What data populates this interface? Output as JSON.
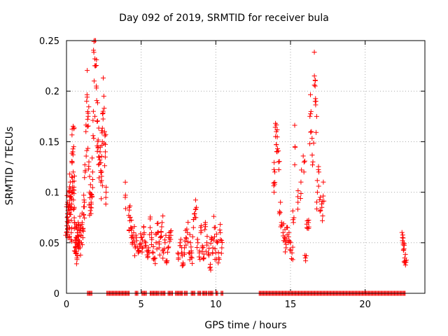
{
  "chart_data": {
    "type": "scatter",
    "title": "Day 092 of 2019, SRMTID for receiver bula",
    "xlabel": "GPS time / hours",
    "ylabel": "SRMTID / TECUs",
    "xlim": [
      0,
      24
    ],
    "ylim": [
      0,
      0.25
    ],
    "xticks": [
      0,
      5,
      10,
      15,
      20
    ],
    "xtick_labels": [
      "0",
      "5",
      "10",
      "15",
      "20"
    ],
    "yticks": [
      0,
      0.05,
      0.1,
      0.15,
      0.2,
      0.25
    ],
    "ytick_labels": [
      "0",
      "0.05",
      "0.1",
      "0.15",
      "0.2",
      "0.25"
    ],
    "grid": true,
    "marker": "+",
    "color": "#ff0000",
    "series": [
      {
        "name": "SRMTID",
        "x": [
          0.0,
          0.05,
          0.08,
          0.1,
          0.12,
          0.15,
          0.18,
          0.2,
          0.22,
          0.25,
          0.28,
          0.3,
          0.32,
          0.35,
          0.38,
          0.4,
          0.42,
          0.45,
          0.48,
          0.5,
          0.52,
          0.55,
          0.58,
          0.6,
          0.62,
          0.65,
          0.68,
          0.7,
          0.72,
          0.75,
          0.78,
          0.8,
          0.85,
          0.9,
          0.95,
          1.0,
          1.05,
          1.1,
          1.15,
          1.2,
          1.25,
          1.3,
          1.35,
          1.4,
          1.45,
          1.5,
          1.55,
          1.6,
          1.65,
          1.7,
          1.75,
          1.8,
          1.85,
          1.9,
          1.95,
          2.0,
          2.05,
          2.1,
          2.15,
          2.2,
          2.25,
          2.3,
          2.35,
          2.4,
          2.45,
          2.5,
          2.55,
          2.6,
          2.65,
          3.95,
          4.2,
          4.25,
          4.3,
          4.35,
          4.4,
          4.5,
          4.6,
          4.7,
          4.8,
          4.9,
          5.0,
          5.1,
          5.2,
          5.3,
          5.4,
          5.5,
          5.6,
          5.7,
          5.8,
          5.9,
          6.0,
          6.1,
          6.2,
          6.3,
          6.4,
          6.5,
          6.6,
          6.7,
          6.8,
          6.9,
          7.0,
          7.5,
          7.6,
          7.7,
          7.8,
          7.9,
          8.0,
          8.1,
          8.2,
          8.3,
          8.4,
          8.5,
          8.6,
          8.7,
          8.8,
          8.9,
          9.0,
          9.1,
          9.2,
          9.3,
          9.4,
          9.5,
          9.6,
          9.7,
          9.8,
          9.9,
          10.0,
          10.1,
          10.2,
          10.3,
          10.4,
          13.9,
          13.95,
          14.0,
          14.05,
          14.1,
          14.2,
          14.3,
          14.4,
          14.5,
          14.6,
          14.7,
          14.8,
          14.9,
          15.0,
          15.1,
          15.2,
          15.3,
          15.5,
          15.7,
          15.9,
          16.0,
          16.1,
          16.2,
          16.3,
          16.4,
          16.5,
          16.6,
          16.65,
          16.7,
          16.8,
          16.9,
          17.0,
          17.1,
          17.2,
          22.5,
          22.55,
          22.6,
          22.65,
          22.7
        ],
        "y": [
          0.06,
          0.075,
          0.09,
          0.055,
          0.07,
          0.1,
          0.085,
          0.065,
          0.092,
          0.11,
          0.078,
          0.095,
          0.06,
          0.115,
          0.13,
          0.1,
          0.14,
          0.12,
          0.145,
          0.105,
          0.085,
          0.07,
          0.05,
          0.045,
          0.065,
          0.04,
          0.055,
          0.035,
          0.06,
          0.048,
          0.07,
          0.052,
          0.06,
          0.045,
          0.065,
          0.05,
          0.07,
          0.055,
          0.078,
          0.09,
          0.12,
          0.16,
          0.19,
          0.165,
          0.175,
          0.13,
          0.1,
          0.085,
          0.09,
          0.095,
          0.12,
          0.18,
          0.21,
          0.232,
          0.225,
          0.205,
          0.17,
          0.15,
          0.135,
          0.128,
          0.14,
          0.11,
          0.12,
          0.15,
          0.18,
          0.195,
          0.16,
          0.14,
          0.1,
          0.097,
          0.085,
          0.075,
          0.065,
          0.055,
          0.05,
          0.06,
          0.045,
          0.052,
          0.04,
          0.048,
          0.055,
          0.045,
          0.06,
          0.05,
          0.038,
          0.045,
          0.065,
          0.055,
          0.04,
          0.035,
          0.05,
          0.06,
          0.045,
          0.055,
          0.07,
          0.04,
          0.05,
          0.03,
          0.045,
          0.055,
          0.062,
          0.035,
          0.05,
          0.04,
          0.03,
          0.045,
          0.055,
          0.06,
          0.04,
          0.05,
          0.035,
          0.065,
          0.075,
          0.085,
          0.05,
          0.04,
          0.06,
          0.045,
          0.035,
          0.07,
          0.05,
          0.04,
          0.025,
          0.055,
          0.045,
          0.065,
          0.04,
          0.05,
          0.035,
          0.06,
          0.045,
          0.1,
          0.12,
          0.155,
          0.16,
          0.14,
          0.13,
          0.08,
          0.07,
          0.06,
          0.055,
          0.045,
          0.065,
          0.06,
          0.05,
          0.04,
          0.07,
          0.145,
          0.09,
          0.11,
          0.12,
          0.035,
          0.065,
          0.07,
          0.175,
          0.16,
          0.13,
          0.215,
          0.205,
          0.19,
          0.1,
          0.12,
          0.095,
          0.085,
          0.11,
          0.052,
          0.048,
          0.044,
          0.035,
          0.028
        ],
        "zero_segments": [
          [
            1.4,
            1.7
          ],
          [
            2.7,
            4.2
          ],
          [
            4.6,
            4.8
          ],
          [
            5.05,
            5.4
          ],
          [
            5.6,
            6.2
          ],
          [
            6.3,
            6.6
          ],
          [
            6.8,
            7.1
          ],
          [
            7.3,
            7.8
          ],
          [
            7.9,
            8.1
          ],
          [
            8.35,
            8.6
          ],
          [
            8.8,
            9.0
          ],
          [
            9.1,
            9.4
          ],
          [
            9.5,
            9.8
          ],
          [
            10.0,
            10.15
          ],
          [
            10.35,
            10.5
          ],
          [
            12.9,
            22.7
          ]
        ]
      }
    ]
  }
}
